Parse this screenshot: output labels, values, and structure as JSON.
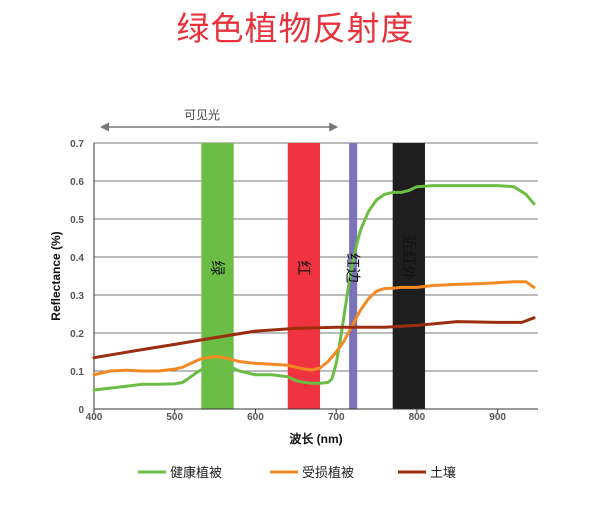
{
  "title": "绿色植物反射度",
  "chart_data": {
    "type": "line",
    "xlabel": "波长 (nm)",
    "ylabel": "Reflectance (%)",
    "xlim": [
      400,
      950
    ],
    "ylim": [
      0,
      0.7
    ],
    "xticks": [
      400,
      500,
      600,
      700,
      800,
      900
    ],
    "yticks": [
      0,
      0.1,
      0.2,
      0.3,
      0.4,
      0.5,
      0.6,
      0.7
    ],
    "ytick_labels": [
      "0",
      "0.1",
      "0.2",
      "0.3",
      "0.4",
      "0.5",
      "0.6",
      "0.7"
    ],
    "grid": "horizontal",
    "legend": "bottom",
    "visible_range": {
      "label": "可见光",
      "from": 400,
      "to": 710
    },
    "bands": [
      {
        "name": "green-band",
        "label": "绿",
        "from": 533,
        "to": 573,
        "color": "#6cbd45"
      },
      {
        "name": "red-band",
        "label": "红",
        "from": 640,
        "to": 680,
        "color": "#ef3340"
      },
      {
        "name": "red-edge-band",
        "label": "红边",
        "from": 716,
        "to": 726,
        "color": "#7a73b8"
      },
      {
        "name": "nir-band",
        "label": "近红外",
        "from": 770,
        "to": 810,
        "color": "#1e1e1e"
      }
    ],
    "series": [
      {
        "name": "健康植被",
        "color": "#6cbd45",
        "x": [
          400,
          420,
          440,
          460,
          480,
          500,
          510,
          520,
          530,
          540,
          550,
          560,
          570,
          580,
          590,
          600,
          620,
          640,
          650,
          660,
          670,
          680,
          690,
          695,
          700,
          705,
          710,
          715,
          720,
          725,
          730,
          740,
          750,
          760,
          770,
          780,
          790,
          800,
          820,
          850,
          880,
          900,
          920,
          935,
          945
        ],
        "y": [
          0.05,
          0.055,
          0.06,
          0.065,
          0.065,
          0.066,
          0.07,
          0.085,
          0.1,
          0.11,
          0.115,
          0.115,
          0.11,
          0.1,
          0.095,
          0.09,
          0.09,
          0.085,
          0.075,
          0.07,
          0.068,
          0.068,
          0.07,
          0.08,
          0.12,
          0.18,
          0.25,
          0.32,
          0.38,
          0.43,
          0.47,
          0.52,
          0.55,
          0.565,
          0.57,
          0.57,
          0.575,
          0.585,
          0.588,
          0.588,
          0.588,
          0.588,
          0.585,
          0.565,
          0.54
        ]
      },
      {
        "name": "受损植被",
        "color": "#f28a24",
        "x": [
          400,
          420,
          440,
          460,
          480,
          500,
          510,
          520,
          530,
          540,
          550,
          560,
          570,
          580,
          600,
          620,
          640,
          650,
          660,
          670,
          680,
          690,
          700,
          710,
          720,
          730,
          740,
          750,
          760,
          770,
          780,
          800,
          820,
          850,
          880,
          900,
          920,
          935,
          945
        ],
        "y": [
          0.09,
          0.1,
          0.102,
          0.1,
          0.1,
          0.105,
          0.11,
          0.12,
          0.13,
          0.135,
          0.138,
          0.136,
          0.13,
          0.125,
          0.12,
          0.118,
          0.115,
          0.11,
          0.105,
          0.103,
          0.108,
          0.125,
          0.15,
          0.18,
          0.22,
          0.26,
          0.29,
          0.31,
          0.317,
          0.318,
          0.32,
          0.32,
          0.325,
          0.328,
          0.33,
          0.332,
          0.335,
          0.335,
          0.32
        ]
      },
      {
        "name": "土壤",
        "color": "#9b2e0e",
        "x": [
          400,
          450,
          500,
          550,
          600,
          650,
          700,
          730,
          760,
          800,
          850,
          900,
          930,
          945
        ],
        "y": [
          0.135,
          0.153,
          0.17,
          0.188,
          0.205,
          0.212,
          0.215,
          0.215,
          0.215,
          0.22,
          0.23,
          0.228,
          0.228,
          0.24
        ]
      }
    ]
  }
}
